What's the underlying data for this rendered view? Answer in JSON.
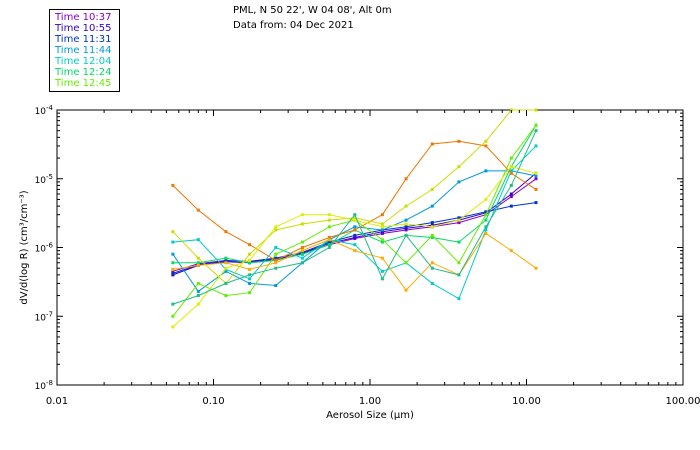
{
  "header": {
    "title": "PML, N 50 22', W 04 08', Alt 0m",
    "subtitle": "Data from: 04 Dec 2021"
  },
  "chart_data": {
    "type": "line",
    "xscale": "log",
    "yscale": "log",
    "xlim": [
      0.01,
      100.0
    ],
    "ylim": [
      1e-08,
      0.0001
    ],
    "xlabel": "Aerosol Size (μm)",
    "ylabel": "dV/d(log R) (cm³/cm⁻³)",
    "xticks": [
      {
        "value": 0.01,
        "label": "0.01"
      },
      {
        "value": 0.1,
        "label": "0.10"
      },
      {
        "value": 1,
        "label": "1.00"
      },
      {
        "value": 10,
        "label": "10.00"
      },
      {
        "value": 100,
        "label": "100.00"
      }
    ],
    "yticks": [
      {
        "value": 1e-08,
        "base": "10",
        "exp": "-8"
      },
      {
        "value": 1e-07,
        "base": "10",
        "exp": "-7"
      },
      {
        "value": 1e-06,
        "base": "10",
        "exp": "-6"
      },
      {
        "value": 1e-05,
        "base": "10",
        "exp": "-5"
      },
      {
        "value": 0.0001,
        "base": "10",
        "exp": "-4"
      }
    ],
    "x": [
      0.055,
      0.08,
      0.12,
      0.17,
      0.25,
      0.37,
      0.55,
      0.8,
      1.2,
      1.7,
      2.5,
      3.7,
      5.5,
      8,
      11.5
    ],
    "series": [
      {
        "name": "Time 10:37",
        "color": "#8800cc",
        "values": [
          4.5e-07,
          5.8e-07,
          6.5e-07,
          6.2e-07,
          6.8e-07,
          8e-07,
          1.1e-06,
          1.35e-06,
          1.6e-06,
          1.8e-06,
          2e-06,
          2.3e-06,
          3e-06,
          5.5e-06,
          1e-05
        ]
      },
      {
        "name": "Time 10:55",
        "color": "#3300cc",
        "values": [
          4e-07,
          5.5e-07,
          6.2e-07,
          6e-07,
          6.6e-07,
          8.2e-07,
          1.15e-06,
          1.4e-06,
          1.7e-06,
          1.9e-06,
          2.1e-06,
          2.5e-06,
          3.2e-06,
          6e-06,
          1.2e-05
        ]
      },
      {
        "name": "Time 11:31",
        "color": "#0033cc",
        "values": [
          4.2e-07,
          5.6e-07,
          6.4e-07,
          6.3e-07,
          7e-07,
          8.5e-07,
          1.2e-06,
          1.5e-06,
          1.8e-06,
          2e-06,
          2.3e-06,
          2.7e-06,
          3.3e-06,
          4e-06,
          4.5e-06
        ]
      },
      {
        "name": "Time 11:44",
        "color": "#0099dd",
        "values": [
          8e-07,
          2.3e-07,
          4.5e-07,
          3e-07,
          2.8e-07,
          6e-07,
          1.3e-06,
          2e-06,
          1.8e-06,
          2.5e-06,
          4e-06,
          9e-06,
          1.3e-05,
          1.3e-05,
          1.1e-05
        ]
      },
      {
        "name": "Time 12:04",
        "color": "#00cccc",
        "values": [
          1.2e-06,
          1.3e-06,
          4.8e-07,
          3.5e-07,
          1e-06,
          7e-07,
          1.3e-06,
          1.1e-06,
          4.5e-07,
          6e-07,
          3e-07,
          1.8e-07,
          1.8e-06,
          1.3e-05,
          3e-05
        ]
      },
      {
        "name": "Time 12:24",
        "color": "#00dd66",
        "values": [
          6e-07,
          6e-07,
          7e-07,
          6e-07,
          6.5e-07,
          8e-07,
          1.1e-06,
          1.8e-06,
          1.2e-06,
          1.5e-06,
          1.4e-06,
          1.2e-06,
          2.5e-06,
          1.5e-05,
          6e-05
        ]
      },
      {
        "name": "Time 12:45",
        "color": "#66ee00",
        "values": [
          1e-07,
          3e-07,
          2e-07,
          2.2e-07,
          8e-07,
          1.2e-06,
          2e-06,
          2.5e-06,
          1.3e-06,
          6e-07,
          1.5e-06,
          6e-07,
          3e-06,
          2e-05,
          6e-05
        ]
      },
      {
        "name": "",
        "color": "#ee7700",
        "values": [
          8e-06,
          3.5e-06,
          1.7e-06,
          1.1e-06,
          6.5e-07,
          1e-06,
          1.4e-06,
          1.8e-06,
          3e-06,
          1e-05,
          3.2e-05,
          3.5e-05,
          3e-05,
          1.2e-05,
          7e-06
        ]
      },
      {
        "name": "",
        "color": "#ffaa00",
        "values": [
          4.8e-07,
          5.5e-07,
          6e-07,
          4.8e-07,
          6e-07,
          9e-07,
          1.3e-06,
          9e-07,
          7e-07,
          2.4e-07,
          6e-07,
          4e-07,
          1.6e-06,
          9e-07,
          5e-07
        ]
      },
      {
        "name": "",
        "color": "#ccdd00",
        "values": [
          1.7e-06,
          7e-07,
          3e-07,
          8e-07,
          1.8e-06,
          2.2e-06,
          2.5e-06,
          2.7e-06,
          2.2e-06,
          4e-06,
          7e-06,
          1.5e-05,
          3.5e-05,
          0.0001,
          0.0001
        ]
      },
      {
        "name": "",
        "color": "#ddee00",
        "values": [
          7e-08,
          1.5e-07,
          5e-07,
          6.5e-07,
          2e-06,
          3e-06,
          3e-06,
          2.5e-06,
          2e-06,
          2.2e-06,
          2e-06,
          2.5e-06,
          5e-06,
          1.5e-05,
          1.2e-05
        ]
      },
      {
        "name": "",
        "color": "#22bb88",
        "values": [
          1.5e-07,
          2e-07,
          3e-07,
          4e-07,
          5e-07,
          6e-07,
          1e-06,
          3e-06,
          3.5e-07,
          1.5e-06,
          5e-07,
          4e-07,
          2e-06,
          8e-06,
          5e-05
        ]
      }
    ]
  }
}
